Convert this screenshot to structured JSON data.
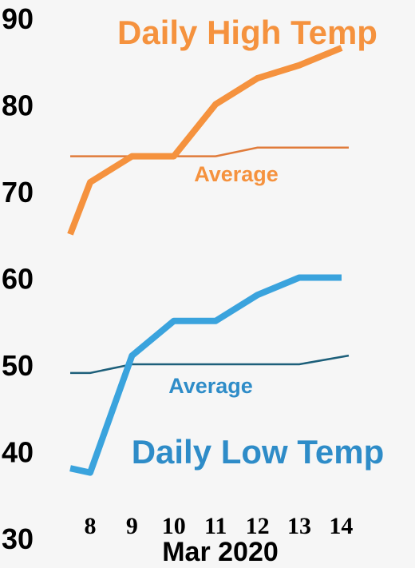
{
  "chart_data": {
    "type": "line",
    "xlabel": "Mar 2020",
    "x": [
      "8",
      "9",
      "10",
      "11",
      "12",
      "13",
      "14"
    ],
    "ylim": [
      30,
      90
    ],
    "yticks": [
      "90",
      "80",
      "70",
      "60",
      "50",
      "40",
      "30"
    ],
    "grid": false,
    "panels": [
      {
        "title": "Daily High Temp",
        "color": "#f5923e",
        "average_label": "Average",
        "average_color": "#e07b3a",
        "series": [
          {
            "x": [
              7.5,
              8,
              9,
              10,
              11,
              12,
              13,
              14
            ],
            "values": [
              65,
              71,
              74,
              74,
              80,
              83,
              84.5,
              86.5
            ]
          }
        ],
        "average": {
          "x": [
            7.5,
            8,
            9,
            10,
            11,
            12,
            13,
            14
          ],
          "values": [
            74,
            74,
            74,
            74,
            74,
            75,
            75,
            75
          ]
        }
      },
      {
        "title": "Daily Low Temp",
        "color": "#3aa3dd",
        "average_label": "Average",
        "average_color": "#1d5f7a",
        "series": [
          {
            "x": [
              7.5,
              8,
              9,
              10,
              11,
              12,
              13,
              14
            ],
            "values": [
              38,
              37.5,
              51,
              55,
              55,
              58,
              60,
              60
            ]
          }
        ],
        "average": {
          "x": [
            7.5,
            8,
            9,
            10,
            11,
            12,
            13,
            14
          ],
          "values": [
            49,
            49,
            50,
            50,
            50,
            50,
            50,
            51
          ]
        }
      }
    ]
  }
}
